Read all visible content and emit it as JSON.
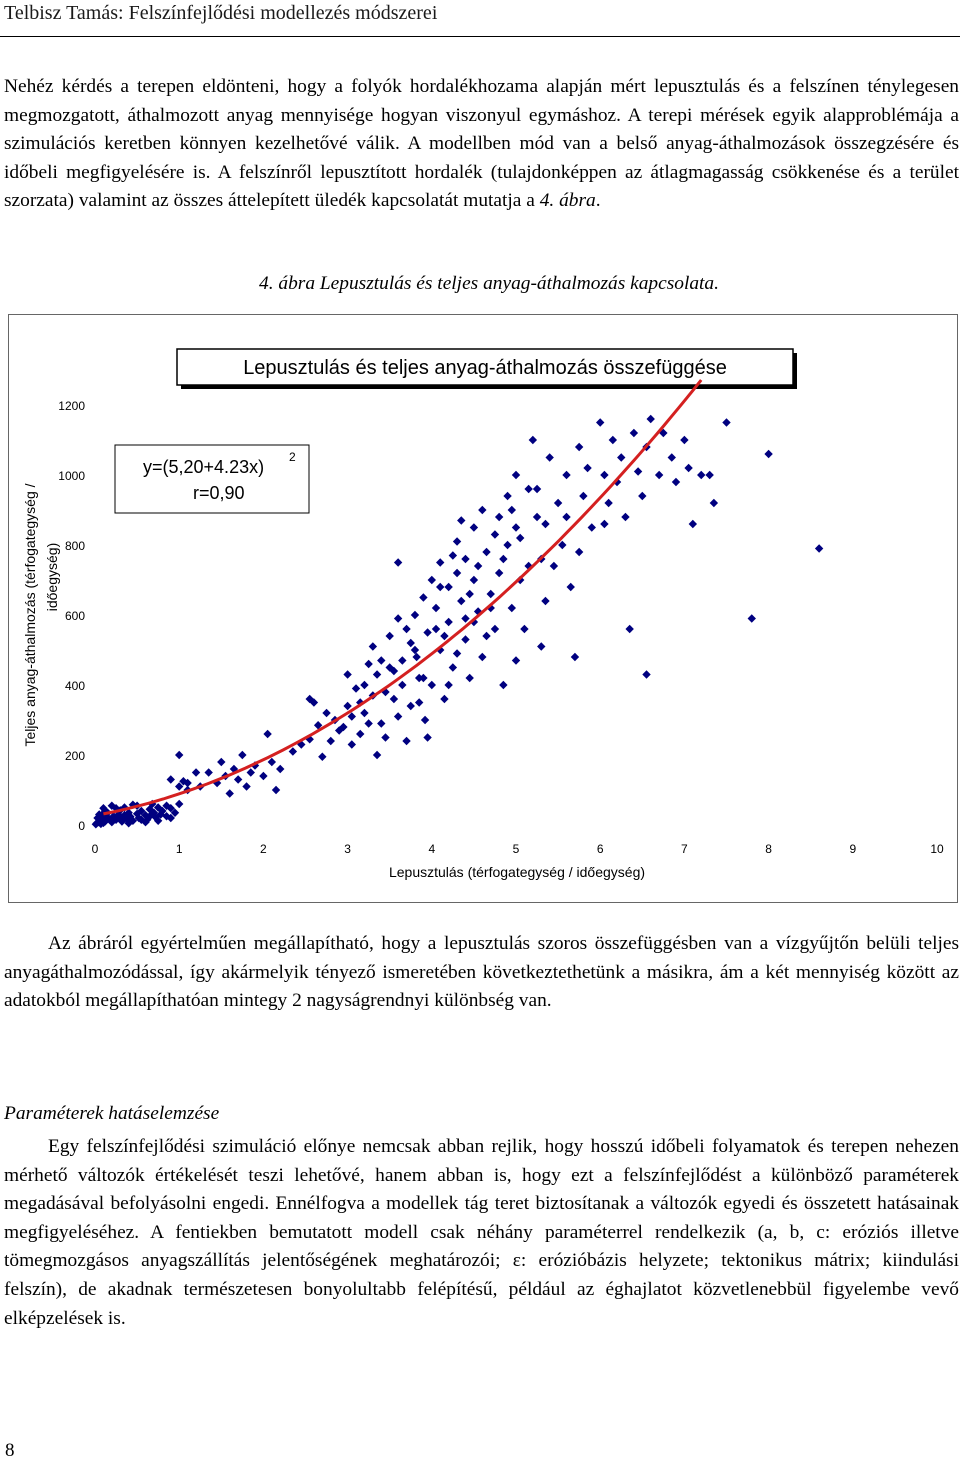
{
  "header": {
    "title": "Telbisz Tamás: Felszínfejlődési modellezés módszerei"
  },
  "paragraph1": {
    "text": "Nehéz kérdés a terepen eldönteni, hogy a folyók hordalékhozama alapján mért lepusztulás és a felszínen ténylegesen megmozgatott, áthalmozott anyag mennyisége hogyan viszonyul egymáshoz. A terepi mérések egyik alapproblémája a szimulációs keretben könnyen kezelhetővé válik. A modellben mód van a belső anyag-áthalmozások összegzésére és időbeli megfigyelésére is. A felszínről lepusztított hordalék (tulajdonképpen az átlagmagasság csökkenése és a terület szorzata) valamint az összes áttelepített üledék kapcsolatát mutatja a ",
    "figure_ref": "4. ábra",
    "end": "."
  },
  "figure": {
    "caption": "4. ábra Lepusztulás és teljes anyag-áthalmozás kapcsolata."
  },
  "chart_data": {
    "type": "scatter",
    "title": "Lepusztulás és teljes anyag-áthalmozás összefüggése",
    "xlabel": "Lepusztulás (térfogategység / időegység)",
    "ylabel_line1": "Teljes anyag-áthalmozás (térfogategység /",
    "ylabel_line2": "időegység)",
    "xlim": [
      0,
      10
    ],
    "ylim": [
      0,
      1200
    ],
    "x_ticks": [
      "0",
      "1",
      "2",
      "3",
      "4",
      "5",
      "6",
      "7",
      "8",
      "9",
      "10"
    ],
    "y_ticks": [
      "0",
      "200",
      "400",
      "600",
      "800",
      "1000",
      "1200"
    ],
    "equation": "y=(5,20+4.23x)",
    "equation_exponent": "2",
    "correlation": "r=0,90",
    "point_color": "#000080",
    "fit_color": "#d42020",
    "fit": {
      "a": 5.2,
      "b": 4.23,
      "x_from": 0.1,
      "x_to": 7.2
    },
    "points": [
      [
        0.01,
        2
      ],
      [
        0.02,
        5
      ],
      [
        0.04,
        8
      ],
      [
        0.05,
        12
      ],
      [
        0.07,
        3
      ],
      [
        0.08,
        18
      ],
      [
        0.1,
        6
      ],
      [
        0.12,
        10
      ],
      [
        0.15,
        22
      ],
      [
        0.18,
        14
      ],
      [
        0.2,
        8
      ],
      [
        0.22,
        25
      ],
      [
        0.25,
        15
      ],
      [
        0.28,
        30
      ],
      [
        0.3,
        20
      ],
      [
        0.32,
        10
      ],
      [
        0.35,
        28
      ],
      [
        0.38,
        18
      ],
      [
        0.4,
        35
      ],
      [
        0.42,
        24
      ],
      [
        0.45,
        12
      ],
      [
        0.5,
        32
      ],
      [
        0.52,
        20
      ],
      [
        0.55,
        40
      ],
      [
        0.6,
        28
      ],
      [
        0.62,
        15
      ],
      [
        0.65,
        45
      ],
      [
        0.7,
        35
      ],
      [
        0.72,
        22
      ],
      [
        0.75,
        50
      ],
      [
        0.78,
        30
      ],
      [
        0.8,
        40
      ],
      [
        0.85,
        25
      ],
      [
        0.9,
        48
      ],
      [
        0.95,
        35
      ],
      [
        1.0,
        60
      ],
      [
        0.4,
        5
      ],
      [
        0.6,
        8
      ],
      [
        0.3,
        42
      ],
      [
        0.15,
        35
      ],
      [
        0.08,
        28
      ],
      [
        0.5,
        55
      ],
      [
        0.68,
        60
      ],
      [
        0.85,
        55
      ],
      [
        0.55,
        15
      ],
      [
        0.9,
        20
      ],
      [
        0.25,
        48
      ],
      [
        0.05,
        30
      ],
      [
        0.03,
        20
      ],
      [
        0.12,
        40
      ],
      [
        0.35,
        50
      ],
      [
        0.45,
        58
      ],
      [
        0.2,
        55
      ],
      [
        0.1,
        48
      ],
      [
        0.75,
        12
      ],
      [
        0.65,
        25
      ],
      [
        0.9,
        130
      ],
      [
        1.0,
        110
      ],
      [
        1.05,
        125
      ],
      [
        1.1,
        100
      ],
      [
        1.2,
        150
      ],
      [
        1.0,
        200
      ],
      [
        1.1,
        120
      ],
      [
        1.25,
        110
      ],
      [
        1.35,
        150
      ],
      [
        1.45,
        120
      ],
      [
        1.5,
        180
      ],
      [
        1.55,
        140
      ],
      [
        1.6,
        90
      ],
      [
        1.65,
        160
      ],
      [
        1.7,
        130
      ],
      [
        1.75,
        200
      ],
      [
        1.8,
        110
      ],
      [
        1.85,
        150
      ],
      [
        1.9,
        170
      ],
      [
        2.0,
        140
      ],
      [
        2.05,
        260
      ],
      [
        2.1,
        180
      ],
      [
        2.15,
        100
      ],
      [
        2.2,
        160
      ],
      [
        2.35,
        210
      ],
      [
        2.45,
        230
      ],
      [
        2.55,
        245
      ],
      [
        2.65,
        285
      ],
      [
        2.55,
        360
      ],
      [
        2.7,
        195
      ],
      [
        2.75,
        320
      ],
      [
        2.8,
        240
      ],
      [
        2.85,
        300
      ],
      [
        2.9,
        270
      ],
      [
        3.0,
        430
      ],
      [
        3.0,
        340
      ],
      [
        3.05,
        230
      ],
      [
        3.1,
        390
      ],
      [
        3.15,
        350
      ],
      [
        3.2,
        320
      ],
      [
        3.25,
        290
      ],
      [
        3.25,
        460
      ],
      [
        3.3,
        510
      ],
      [
        3.35,
        430
      ],
      [
        3.4,
        290
      ],
      [
        3.45,
        380
      ],
      [
        3.5,
        540
      ],
      [
        3.55,
        440
      ],
      [
        3.6,
        310
      ],
      [
        3.6,
        590
      ],
      [
        3.65,
        470
      ],
      [
        3.7,
        560
      ],
      [
        3.75,
        340
      ],
      [
        3.8,
        600
      ],
      [
        3.82,
        480
      ],
      [
        3.85,
        420
      ],
      [
        3.9,
        650
      ],
      [
        3.92,
        300
      ],
      [
        3.95,
        550
      ],
      [
        4.0,
        700
      ],
      [
        4.0,
        400
      ],
      [
        4.05,
        620
      ],
      [
        4.1,
        500
      ],
      [
        4.1,
        750
      ],
      [
        4.15,
        360
      ],
      [
        4.2,
        680
      ],
      [
        4.2,
        580
      ],
      [
        4.25,
        450
      ],
      [
        4.3,
        720
      ],
      [
        4.3,
        810
      ],
      [
        4.35,
        640
      ],
      [
        4.4,
        530
      ],
      [
        4.4,
        760
      ],
      [
        4.45,
        420
      ],
      [
        4.5,
        850
      ],
      [
        4.5,
        700
      ],
      [
        4.55,
        610
      ],
      [
        4.6,
        480
      ],
      [
        4.6,
        900
      ],
      [
        4.65,
        780
      ],
      [
        4.7,
        660
      ],
      [
        4.75,
        560
      ],
      [
        4.8,
        880
      ],
      [
        4.8,
        720
      ],
      [
        4.85,
        400
      ],
      [
        4.9,
        940
      ],
      [
        4.9,
        800
      ],
      [
        4.95,
        620
      ],
      [
        5.0,
        1000
      ],
      [
        5.0,
        850
      ],
      [
        5.05,
        700
      ],
      [
        5.1,
        560
      ],
      [
        5.15,
        960
      ],
      [
        5.2,
        1100
      ],
      [
        5.25,
        880
      ],
      [
        5.3,
        760
      ],
      [
        5.35,
        640
      ],
      [
        5.4,
        1050
      ],
      [
        5.5,
        920
      ],
      [
        5.55,
        800
      ],
      [
        5.6,
        1000
      ],
      [
        5.65,
        680
      ],
      [
        5.7,
        480
      ],
      [
        5.75,
        1080
      ],
      [
        5.8,
        940
      ],
      [
        5.85,
        1020
      ],
      [
        5.9,
        850
      ],
      [
        6.0,
        1150
      ],
      [
        6.05,
        1000
      ],
      [
        6.1,
        920
      ],
      [
        6.15,
        1100
      ],
      [
        6.2,
        980
      ],
      [
        6.25,
        1050
      ],
      [
        6.3,
        880
      ],
      [
        6.4,
        1120
      ],
      [
        6.45,
        1010
      ],
      [
        6.5,
        940
      ],
      [
        6.55,
        1080
      ],
      [
        6.6,
        1160
      ],
      [
        6.7,
        1000
      ],
      [
        6.75,
        1120
      ],
      [
        6.85,
        1050
      ],
      [
        6.9,
        980
      ],
      [
        7.0,
        1100
      ],
      [
        7.05,
        1020
      ],
      [
        7.1,
        860
      ],
      [
        7.3,
        1000
      ],
      [
        7.5,
        1150
      ],
      [
        8.0,
        1060
      ],
      [
        2.6,
        350
      ],
      [
        3.6,
        750
      ],
      [
        4.4,
        590
      ],
      [
        5.0,
        470
      ],
      [
        5.3,
        510
      ],
      [
        6.35,
        560
      ],
      [
        6.55,
        430
      ],
      [
        7.8,
        590
      ],
      [
        8.6,
        790
      ],
      [
        7.2,
        1000
      ],
      [
        7.35,
        920
      ],
      [
        3.95,
        250
      ],
      [
        4.1,
        680
      ],
      [
        4.15,
        540
      ],
      [
        4.25,
        770
      ],
      [
        4.3,
        490
      ],
      [
        4.35,
        870
      ],
      [
        4.45,
        660
      ],
      [
        4.55,
        740
      ],
      [
        4.65,
        540
      ],
      [
        4.75,
        830
      ],
      [
        4.85,
        760
      ],
      [
        4.95,
        900
      ],
      [
        5.05,
        820
      ],
      [
        5.15,
        740
      ],
      [
        5.25,
        960
      ],
      [
        5.35,
        860
      ],
      [
        5.45,
        740
      ],
      [
        5.6,
        880
      ],
      [
        5.75,
        780
      ],
      [
        6.05,
        860
      ],
      [
        3.15,
        260
      ],
      [
        3.35,
        200
      ],
      [
        3.45,
        250
      ],
      [
        3.7,
        240
      ],
      [
        3.9,
        420
      ],
      [
        3.3,
        370
      ],
      [
        3.5,
        450
      ],
      [
        3.55,
        360
      ],
      [
        3.75,
        520
      ],
      [
        3.85,
        350
      ],
      [
        2.95,
        280
      ],
      [
        3.05,
        310
      ],
      [
        3.2,
        400
      ],
      [
        3.4,
        470
      ],
      [
        3.65,
        400
      ],
      [
        3.8,
        500
      ],
      [
        4.05,
        560
      ],
      [
        4.2,
        400
      ],
      [
        4.5,
        580
      ],
      [
        4.7,
        620
      ]
    ]
  },
  "paragraph2": {
    "text": "Az ábráról egyértelműen megállapítható, hogy a lepusztulás szoros összefüggésben van a vízgyűjtőn belüli teljes anyagáthalmozódással, így akármelyik tényező ismeretében következtethetünk a másikra, ám a két mennyiség között az adatokból megállapíthatóan mintegy 2 nagyságrendnyi különbség van."
  },
  "section": {
    "title": "Paraméterek hatáselemzése"
  },
  "paragraph3": {
    "text": "Egy felszínfejlődési szimuláció előnye nemcsak abban rejlik, hogy hosszú időbeli folyamatok és terepen nehezen mérhető változók értékelését teszi lehetővé, hanem abban is, hogy ezt a felszínfejlődést a különböző paraméterek megadásával befolyásolni engedi. Ennélfogva a modellek tág teret biztosítanak a változók egyedi és összetett hatásainak megfigyeléséhez. A fentiekben bemutatott modell csak néhány paraméterrel rendelkezik (a, b, c: eróziós illetve tömegmozgásos anyagszállítás jelentőségének meghatározói; ε: erózióbázis helyzete; tektonikus mátrix; kiindulási felszín), de akadnak természetesen bonyolultabb felépítésű, például az éghajlatot közvetlenebbül figyelembe vevő elképzelések is."
  },
  "footer": {
    "page_number": "8"
  }
}
